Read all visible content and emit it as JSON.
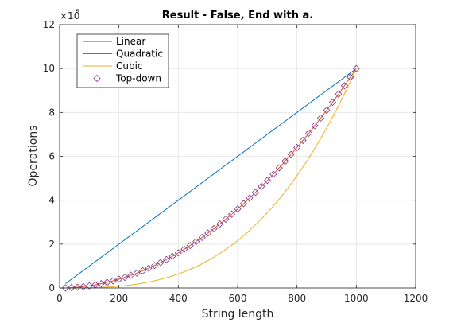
{
  "chart_data": {
    "type": "line",
    "title": "Result - False, End with a.",
    "xlabel": "String length",
    "ylabel": "Operations",
    "xlim": [
      0,
      1200
    ],
    "ylim": [
      0,
      12
    ],
    "xticks": [
      0,
      200,
      400,
      600,
      800,
      1000,
      1200
    ],
    "yticks": [
      0,
      2,
      4,
      6,
      8,
      10,
      12
    ],
    "xtick_labels": [
      "0",
      "200",
      "400",
      "600",
      "800",
      "1000",
      "1200"
    ],
    "ytick_labels": [
      "0",
      "2",
      "4",
      "6",
      "8",
      "10",
      "12"
    ],
    "y_exponent_base": "×10",
    "y_exponent_power": "5",
    "grid": true,
    "legend_placement": "top-left",
    "series": [
      {
        "name": "Linear",
        "style": "line",
        "color": "#0072BD",
        "x": [
          20,
          1000
        ],
        "y": [
          0.2,
          10.0
        ]
      },
      {
        "name": "Quadratic",
        "style": "line",
        "color": "#D95319",
        "x": [
          20,
          100,
          200,
          300,
          400,
          500,
          600,
          700,
          800,
          900,
          1000
        ],
        "y": [
          0.004,
          0.1,
          0.4,
          0.9,
          1.6,
          2.5,
          3.6,
          4.9,
          6.4,
          8.1,
          10.0
        ]
      },
      {
        "name": "Cubic",
        "style": "line",
        "color": "#EDB120",
        "x": [
          20,
          100,
          200,
          300,
          400,
          500,
          600,
          700,
          800,
          900,
          1000
        ],
        "y": [
          0.0001,
          0.01,
          0.08,
          0.27,
          0.64,
          1.25,
          2.16,
          3.43,
          5.12,
          7.29,
          10.0
        ]
      },
      {
        "name": "Top-down",
        "style": "marker",
        "color": "#7E2F8E",
        "x": [
          20,
          40,
          60,
          80,
          100,
          120,
          140,
          160,
          180,
          200,
          220,
          240,
          260,
          280,
          300,
          320,
          340,
          360,
          380,
          400,
          420,
          440,
          460,
          480,
          500,
          520,
          540,
          560,
          580,
          600,
          620,
          640,
          660,
          680,
          700,
          720,
          740,
          760,
          780,
          800,
          820,
          840,
          860,
          880,
          900,
          920,
          940,
          960,
          980,
          1000
        ],
        "y": [
          0.004,
          0.016,
          0.036,
          0.064,
          0.1,
          0.144,
          0.196,
          0.256,
          0.324,
          0.4,
          0.484,
          0.576,
          0.676,
          0.784,
          0.9,
          1.024,
          1.156,
          1.296,
          1.444,
          1.6,
          1.764,
          1.936,
          2.116,
          2.304,
          2.5,
          2.704,
          2.916,
          3.136,
          3.364,
          3.6,
          3.844,
          4.096,
          4.356,
          4.624,
          4.9,
          5.184,
          5.476,
          5.776,
          6.084,
          6.4,
          6.724,
          7.056,
          7.396,
          7.744,
          8.1,
          8.464,
          8.836,
          9.216,
          9.604,
          10.0
        ]
      }
    ]
  }
}
